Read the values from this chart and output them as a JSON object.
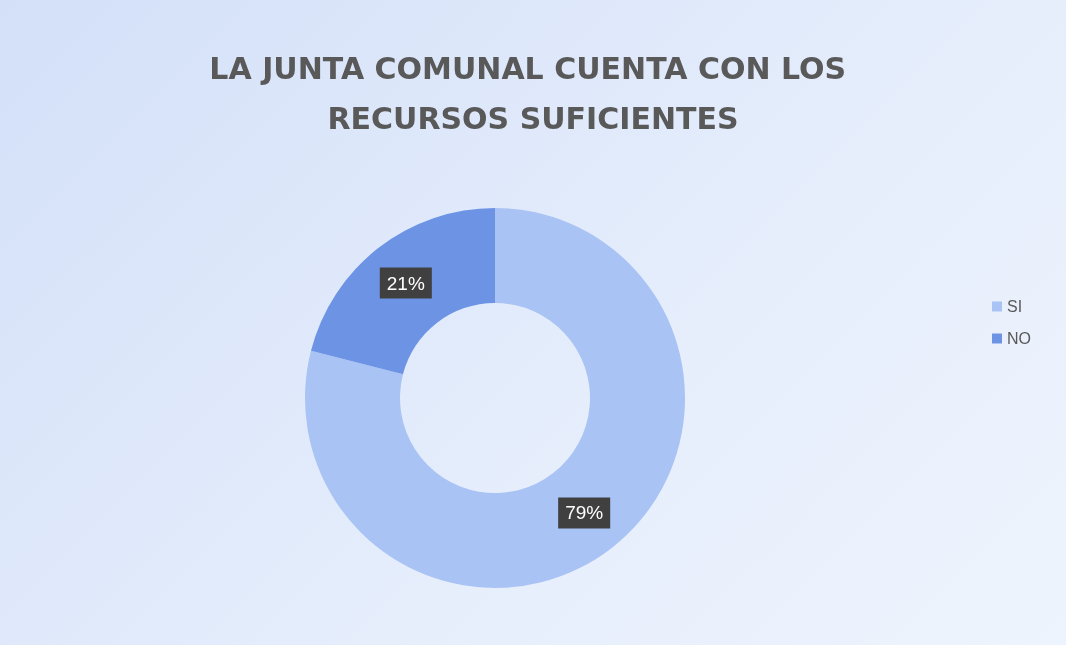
{
  "chart_data": {
    "type": "donut",
    "title": "LA JUNTA COMUNAL CUENTA CON LOS RECURSOS SUFICIENTES",
    "categories": [
      "SI",
      "NO"
    ],
    "values": [
      79,
      21
    ],
    "colors": [
      "#a9c3f4",
      "#6d94e4"
    ],
    "value_labels": [
      "79%",
      "21%"
    ],
    "legend": "right"
  }
}
